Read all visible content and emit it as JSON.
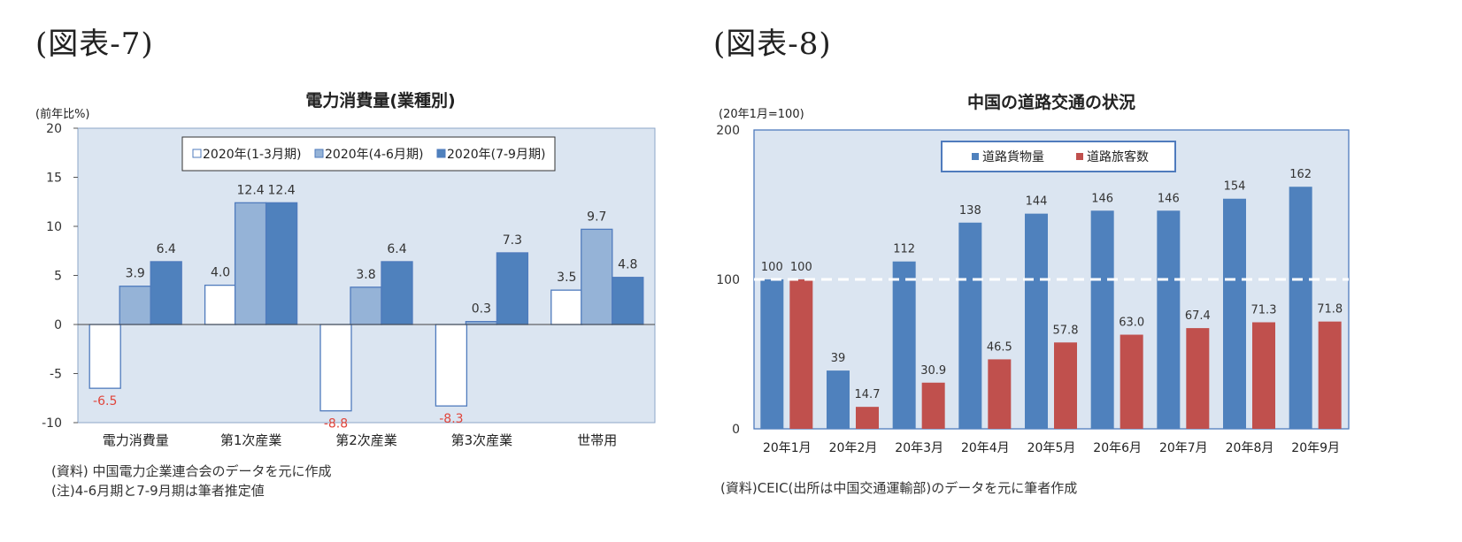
{
  "chart_data": [
    {
      "heading": "(図表-7)",
      "type": "bar",
      "title": "電力消費量(業種別)",
      "unit_label": "(前年比%)",
      "categories": [
        "電力消費量",
        "第1次産業",
        "第2次産業",
        "第3次産業",
        "世帯用"
      ],
      "series": [
        {
          "name": "2020年(1-3月期)",
          "values": [
            -6.5,
            4.0,
            -8.8,
            -8.3,
            3.5
          ],
          "value_labels": [
            "-6.5",
            "4.0",
            "-8.8",
            "-8.3",
            "3.5"
          ],
          "color": "#ffffff",
          "stroke": "#4f7bbd"
        },
        {
          "name": "2020年(4-6月期)",
          "values": [
            3.9,
            12.4,
            3.8,
            0.3,
            9.7
          ],
          "value_labels": [
            "3.9",
            "12.4",
            "3.8",
            "0.3",
            "9.7"
          ],
          "color": "#95b3d7",
          "stroke": "#4f7bbd"
        },
        {
          "name": "2020年(7-9月期)",
          "values": [
            6.4,
            12.4,
            6.4,
            7.3,
            4.8
          ],
          "value_labels": [
            "6.4",
            "12.4",
            "6.4",
            "7.3",
            "4.8"
          ],
          "color": "#4f81bd",
          "stroke": "#4f7bbd"
        }
      ],
      "yticks": [
        "20",
        "15",
        "10",
        "5",
        "0",
        "-5",
        "-10"
      ],
      "ylim": [
        -10,
        20
      ],
      "grid": false,
      "negative_label_color": "#e0453b",
      "plot_background": "#dbe5f1",
      "legend_position": "top-center",
      "source_lines": [
        "(資料) 中国電力企業連合会のデータを元に作成",
        "(注)4-6月期と7-9月期は筆者推定値"
      ]
    },
    {
      "heading": "(図表-8)",
      "type": "bar",
      "title": "中国の道路交通の状況",
      "unit_label": "(20年1月=100)",
      "categories": [
        "20年1月",
        "20年2月",
        "20年3月",
        "20年4月",
        "20年5月",
        "20年6月",
        "20年7月",
        "20年8月",
        "20年9月"
      ],
      "series": [
        {
          "name": "道路貨物量",
          "values": [
            100,
            39,
            112,
            138,
            144,
            146,
            146,
            154,
            162
          ],
          "value_labels": [
            "100",
            "39",
            "112",
            "138",
            "144",
            "146",
            "146",
            "154",
            "162"
          ],
          "color": "#4f81bd"
        },
        {
          "name": "道路旅客数",
          "values": [
            100,
            14.7,
            30.9,
            46.5,
            57.8,
            63.0,
            67.4,
            71.3,
            71.8
          ],
          "value_labels": [
            "100",
            "14.7",
            "30.9",
            "46.5",
            "57.8",
            "63.0",
            "67.4",
            "71.3",
            "71.8"
          ],
          "color": "#c0504d"
        }
      ],
      "yticks": [
        "200",
        "100",
        "0"
      ],
      "ylim": [
        0,
        200
      ],
      "grid": false,
      "reference_line": 100,
      "plot_background": "#dbe5f1",
      "legend_position": "top-center",
      "source_lines": [
        "(資料)CEIC(出所は中国交通運輸部)のデータを元に筆者作成"
      ]
    }
  ]
}
